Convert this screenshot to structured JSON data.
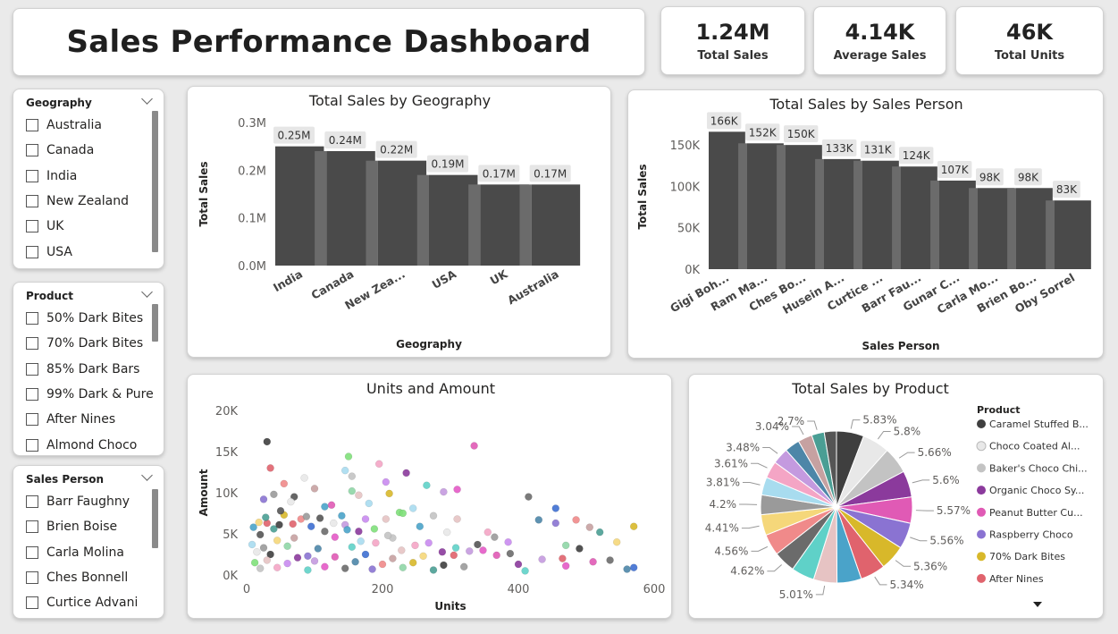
{
  "dashboard": {
    "title": "Sales Performance Dashboard",
    "kpis": [
      {
        "value": "1.24M",
        "label": "Total Sales"
      },
      {
        "value": "4.14K",
        "label": "Average Sales"
      },
      {
        "value": "46K",
        "label": "Total Units"
      }
    ]
  },
  "slicers": {
    "geography": {
      "title": "Geography",
      "items": [
        "Australia",
        "Canada",
        "India",
        "New Zealand",
        "UK",
        "USA"
      ]
    },
    "product": {
      "title": "Product",
      "items": [
        "50% Dark Bites",
        "70% Dark Bites",
        "85% Dark Bars",
        "99% Dark & Pure",
        "After Nines",
        "Almond Choco"
      ]
    },
    "sales_person": {
      "title": "Sales Person",
      "items": [
        "Barr Faughny",
        "Brien Boise",
        "Carla Molina",
        "Ches Bonnell",
        "Curtice Advani"
      ]
    }
  },
  "colors": {
    "bar": "#4a4a4a",
    "bar_shade": "#6b6b6b",
    "label_bg": "#e6e6e6"
  },
  "chart_data": [
    {
      "type": "bar",
      "title": "Total Sales by Geography",
      "xlabel": "Geography",
      "ylabel": "Total Sales",
      "categories": [
        "India",
        "Canada",
        "New Zea...",
        "USA",
        "UK",
        "Australia"
      ],
      "values": [
        0.25,
        0.24,
        0.22,
        0.19,
        0.17,
        0.17
      ],
      "data_labels": [
        "0.25M",
        "0.24M",
        "0.22M",
        "0.19M",
        "0.17M",
        "0.17M"
      ],
      "yticks": [
        "0.0M",
        "0.1M",
        "0.2M",
        "0.3M"
      ],
      "ylim": [
        0,
        0.3
      ]
    },
    {
      "type": "bar",
      "title": "Total Sales by Sales Person",
      "xlabel": "Sales Person",
      "ylabel": "Total Sales",
      "categories": [
        "Gigi Boh...",
        "Ram Ma...",
        "Ches Bo...",
        "Husein A...",
        "Curtice ...",
        "Barr Fau...",
        "Gunar C...",
        "Carla Mo...",
        "Brien Bo...",
        "Oby Sorrel"
      ],
      "values": [
        166,
        152,
        150,
        133,
        131,
        124,
        107,
        98,
        98,
        83
      ],
      "data_labels": [
        "166K",
        "152K",
        "150K",
        "133K",
        "131K",
        "124K",
        "107K",
        "98K",
        "98K",
        "83K"
      ],
      "yticks": [
        "0K",
        "50K",
        "100K",
        "150K"
      ],
      "ylim": [
        0,
        175
      ]
    },
    {
      "type": "scatter",
      "title": "Units and Amount",
      "xlabel": "Units",
      "ylabel": "Amount",
      "xticks": [
        "0",
        "200",
        "400",
        "600"
      ],
      "yticks": [
        "0K",
        "5K",
        "10K",
        "15K",
        "20K"
      ],
      "xlim": [
        0,
        600
      ],
      "ylim": [
        0,
        20000
      ],
      "points": [
        [
          30,
          16200
        ],
        [
          35,
          13000
        ],
        [
          40,
          9800
        ],
        [
          70,
          9500
        ],
        [
          85,
          11800
        ],
        [
          115,
          8300
        ],
        [
          145,
          12700
        ],
        [
          150,
          14400
        ],
        [
          155,
          12000
        ],
        [
          165,
          9700
        ],
        [
          195,
          13500
        ],
        [
          205,
          11300
        ],
        [
          235,
          12400
        ],
        [
          265,
          10900
        ],
        [
          290,
          10100
        ],
        [
          310,
          10400
        ],
        [
          335,
          15700
        ],
        [
          415,
          9500
        ],
        [
          430,
          6700
        ],
        [
          455,
          8100
        ],
        [
          455,
          6300
        ],
        [
          485,
          6700
        ],
        [
          505,
          5800
        ],
        [
          470,
          3600
        ],
        [
          570,
          5900
        ],
        [
          545,
          4000
        ],
        [
          520,
          5200
        ],
        [
          490,
          3200
        ],
        [
          465,
          2000
        ],
        [
          365,
          4600
        ],
        [
          340,
          3700
        ],
        [
          295,
          5200
        ],
        [
          255,
          5900
        ],
        [
          245,
          8100
        ],
        [
          225,
          7600
        ],
        [
          215,
          4500
        ],
        [
          205,
          6800
        ],
        [
          190,
          3900
        ],
        [
          175,
          6800
        ],
        [
          165,
          5300
        ],
        [
          155,
          3400
        ],
        [
          145,
          6100
        ],
        [
          130,
          4600
        ],
        [
          125,
          8500
        ],
        [
          115,
          5300
        ],
        [
          105,
          3200
        ],
        [
          95,
          5900
        ],
        [
          90,
          2300
        ],
        [
          80,
          6800
        ],
        [
          70,
          4500
        ],
        [
          60,
          3500
        ],
        [
          55,
          7300
        ],
        [
          45,
          4200
        ],
        [
          40,
          5600
        ],
        [
          35,
          2500
        ],
        [
          30,
          6300
        ],
        [
          25,
          3300
        ],
        [
          20,
          4900
        ],
        [
          15,
          2800
        ],
        [
          10,
          5800
        ],
        [
          8,
          3700
        ],
        [
          12,
          1500
        ],
        [
          20,
          800
        ],
        [
          30,
          1800
        ],
        [
          45,
          900
        ],
        [
          60,
          1400
        ],
        [
          75,
          2100
        ],
        [
          90,
          600
        ],
        [
          100,
          1700
        ],
        [
          115,
          1000
        ],
        [
          130,
          2200
        ],
        [
          145,
          800
        ],
        [
          160,
          1600
        ],
        [
          175,
          2500
        ],
        [
          185,
          700
        ],
        [
          200,
          1300
        ],
        [
          215,
          2000
        ],
        [
          230,
          900
        ],
        [
          245,
          1500
        ],
        [
          260,
          2300
        ],
        [
          275,
          600
        ],
        [
          290,
          1200
        ],
        [
          305,
          2400
        ],
        [
          320,
          1000
        ],
        [
          50,
          7800
        ],
        [
          65,
          8900
        ],
        [
          140,
          7200
        ],
        [
          180,
          8700
        ],
        [
          230,
          7500
        ],
        [
          275,
          7200
        ],
        [
          310,
          6800
        ],
        [
          355,
          5200
        ],
        [
          385,
          4000
        ],
        [
          400,
          1300
        ],
        [
          410,
          500
        ],
        [
          435,
          1900
        ],
        [
          470,
          1100
        ],
        [
          510,
          1600
        ],
        [
          535,
          1800
        ],
        [
          560,
          700
        ],
        [
          570,
          900
        ],
        [
          25,
          9200
        ],
        [
          55,
          11100
        ],
        [
          100,
          10500
        ],
        [
          155,
          10200
        ],
        [
          210,
          9900
        ],
        [
          18,
          6400
        ],
        [
          28,
          7000
        ],
        [
          48,
          6100
        ],
        [
          68,
          6200
        ],
        [
          88,
          7100
        ],
        [
          108,
          6900
        ],
        [
          128,
          6300
        ],
        [
          148,
          5500
        ],
        [
          168,
          4100
        ],
        [
          188,
          5600
        ],
        [
          208,
          4800
        ],
        [
          228,
          3000
        ],
        [
          248,
          3600
        ],
        [
          268,
          3900
        ],
        [
          288,
          2800
        ],
        [
          308,
          3300
        ],
        [
          328,
          2900
        ],
        [
          348,
          3000
        ],
        [
          368,
          2400
        ],
        [
          388,
          2600
        ]
      ]
    },
    {
      "type": "pie",
      "title": "Total Sales by Product",
      "legend_title": "Product",
      "legend_position": "right",
      "legend": [
        {
          "name": "Caramel Stuffed B...",
          "color": "#3f3f3f"
        },
        {
          "name": "Choco Coated Al...",
          "color": "#e8e8e8"
        },
        {
          "name": "Baker's Choco Chi...",
          "color": "#c3c3c3"
        },
        {
          "name": "Organic Choco Sy...",
          "color": "#8b3a9c"
        },
        {
          "name": "Peanut Butter Cu...",
          "color": "#e05ab5"
        },
        {
          "name": "Raspberry Choco",
          "color": "#8a73d2"
        },
        {
          "name": "70% Dark Bites",
          "color": "#d8b82a"
        },
        {
          "name": "After Nines",
          "color": "#e0636d"
        }
      ],
      "values": [
        5.83,
        5.8,
        5.66,
        5.6,
        5.57,
        5.56,
        5.36,
        5.34,
        5.2,
        5.01,
        4.9,
        4.62,
        4.56,
        4.41,
        4.2,
        3.81,
        3.61,
        3.48,
        3.2,
        3.04,
        2.7,
        2.6
      ],
      "labels": [
        "5.83%",
        "5.8%",
        "5.66%",
        "5.6%",
        "5.57%",
        "5.56%",
        "5.36%",
        "5.34%",
        "",
        "5.01%",
        "",
        "4.62%",
        "4.56%",
        "4.41%",
        "4.2%",
        "3.81%",
        "3.61%",
        "3.48%",
        "",
        "3.04%",
        "2.7%",
        ""
      ],
      "colors": [
        "#3f3f3f",
        "#e8e8e8",
        "#c3c3c3",
        "#8b3a9c",
        "#e05ab5",
        "#8a73d2",
        "#d8b82a",
        "#e0636d",
        "#4aa3c9",
        "#e6c3c3",
        "#5fd1c8",
        "#6b6b6b",
        "#f08a8a",
        "#f5d77a",
        "#9a9a9a",
        "#a8dcef",
        "#f4a5c5",
        "#c49adf",
        "#4d86a8",
        "#c6a1a1",
        "#4a9e94",
        "#555555"
      ]
    }
  ]
}
